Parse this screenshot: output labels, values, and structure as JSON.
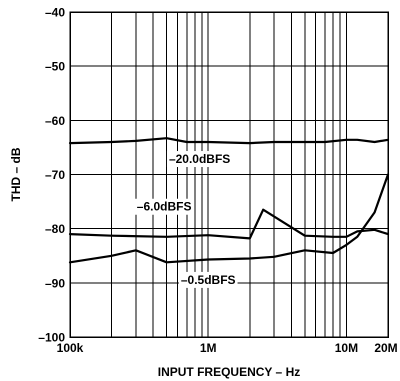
{
  "chart_data": {
    "type": "line",
    "title": "",
    "xlabel": "INPUT FREQUENCY – Hz",
    "ylabel": "THD – dB",
    "x_scale": "log",
    "xlim": [
      100000,
      20000000
    ],
    "ylim": [
      -100,
      -40
    ],
    "grid": true,
    "x_ticks": [
      {
        "value": 100000,
        "label": "100k"
      },
      {
        "value": 1000000,
        "label": "1M"
      },
      {
        "value": 10000000,
        "label": "10M"
      },
      {
        "value": 20000000,
        "label": "20M"
      }
    ],
    "y_ticks": [
      {
        "value": -40,
        "label": "–40"
      },
      {
        "value": -50,
        "label": "–50"
      },
      {
        "value": -60,
        "label": "–60"
      },
      {
        "value": -70,
        "label": "–70"
      },
      {
        "value": -80,
        "label": "–80"
      },
      {
        "value": -90,
        "label": "–90"
      },
      {
        "value": -100,
        "label": "–100"
      }
    ],
    "series": [
      {
        "name": "–20.0dBFS",
        "x": [
          100000,
          200000,
          300000,
          500000,
          700000,
          1000000,
          2000000,
          3000000,
          5000000,
          7000000,
          10000000,
          12000000,
          16000000,
          20000000
        ],
        "y": [
          -64.2,
          -64.0,
          -63.8,
          -63.3,
          -64.0,
          -64.0,
          -64.2,
          -64.0,
          -64.0,
          -64.0,
          -63.6,
          -63.6,
          -64.0,
          -63.6
        ]
      },
      {
        "name": "–6.0dBFS",
        "x": [
          100000,
          200000,
          500000,
          1000000,
          2000000,
          2500000,
          5000000,
          8000000,
          10000000,
          12000000,
          16000000,
          20000000
        ],
        "y": [
          -81.0,
          -81.3,
          -81.5,
          -81.2,
          -81.8,
          -76.5,
          -81.3,
          -81.5,
          -81.5,
          -80.5,
          -80.2,
          -81.0
        ]
      },
      {
        "name": "–0.5dBFS",
        "x": [
          100000,
          200000,
          300000,
          500000,
          1000000,
          2000000,
          3000000,
          5000000,
          8000000,
          10000000,
          12000000,
          16000000,
          20000000
        ],
        "y": [
          -86.2,
          -85.0,
          -84.0,
          -86.2,
          -85.7,
          -85.5,
          -85.2,
          -84.0,
          -84.5,
          -83.0,
          -81.5,
          -77.0,
          -70.0
        ]
      }
    ]
  }
}
